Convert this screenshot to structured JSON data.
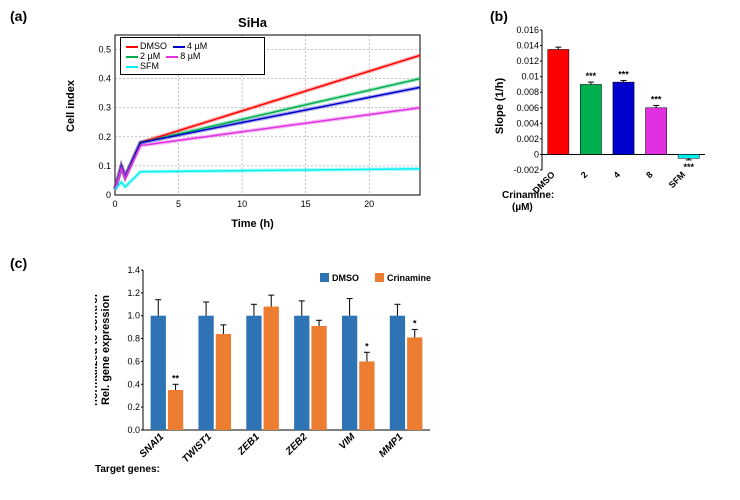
{
  "panel_a": {
    "label": "(a)",
    "title": "SiHa",
    "xlabel": "Time (h)",
    "ylabel": "Cell index",
    "xlim": [
      0,
      24
    ],
    "ylim": [
      0,
      0.55
    ],
    "xticks": [
      0,
      5,
      10,
      15,
      20
    ],
    "yticks": [
      0,
      0.1,
      0.2,
      0.3,
      0.4,
      0.5
    ],
    "legend": [
      {
        "label": "DMSO",
        "color": "#ff0000"
      },
      {
        "label": "2 µM",
        "color": "#00b050"
      },
      {
        "label": "SFM",
        "color": "#00f0f0"
      },
      {
        "label": "4 µM",
        "color": "#0000cc"
      },
      {
        "label": "8 µM",
        "color": "#e030e0"
      }
    ],
    "series": {
      "DMSO": {
        "color": "#ff0000",
        "start": 0.18,
        "end": 0.48
      },
      "2uM": {
        "color": "#00b050",
        "start": 0.18,
        "end": 0.4
      },
      "4uM": {
        "color": "#0000cc",
        "start": 0.18,
        "end": 0.37
      },
      "8uM": {
        "color": "#e030e0",
        "start": 0.17,
        "end": 0.3
      },
      "SFM": {
        "color": "#00f0f0",
        "start": 0.08,
        "end": 0.09
      }
    },
    "initial_peak_x": 0.5,
    "plateau_start_x": 2
  },
  "panel_b": {
    "label": "(b)",
    "ylabel": "Slope (1/h)",
    "xlabel_line1": "Crinamine:",
    "xlabel_line2": "(µM)",
    "ylim": [
      -0.002,
      0.016
    ],
    "yticks": [
      -0.002,
      0,
      0.002,
      0.004,
      0.006,
      0.008,
      0.01,
      0.012,
      0.014,
      0.016
    ],
    "bars": [
      {
        "label": "DMSO",
        "value": 0.0135,
        "color": "#ff0000",
        "err": 0.0003,
        "sig": ""
      },
      {
        "label": "2",
        "value": 0.009,
        "color": "#00b050",
        "err": 0.0003,
        "sig": "***"
      },
      {
        "label": "4",
        "value": 0.0093,
        "color": "#0000cc",
        "err": 0.0002,
        "sig": "***"
      },
      {
        "label": "8",
        "value": 0.006,
        "color": "#e030e0",
        "err": 0.0003,
        "sig": "***"
      },
      {
        "label": "SFM",
        "value": -0.0005,
        "color": "#00f0f0",
        "err": 0.0002,
        "sig": "***"
      }
    ]
  },
  "panel_c": {
    "label": "(c)",
    "ylabel": "Rel. gene expression\nnormalized to control",
    "xgroup_label": "Target genes:",
    "ylim": [
      0,
      1.4
    ],
    "yticks": [
      0,
      0.2,
      0.4,
      0.6,
      0.8,
      1.0,
      1.2,
      1.4
    ],
    "legend": [
      {
        "label": "DMSO",
        "color": "#2e74b5"
      },
      {
        "label": "Crinamine",
        "color": "#ed7d31"
      }
    ],
    "groups": [
      {
        "label": "SNAI1",
        "dmso": 1.0,
        "dmso_err": 0.14,
        "crin": 0.35,
        "crin_err": 0.05,
        "sig": "**"
      },
      {
        "label": "TWIST1",
        "dmso": 1.0,
        "dmso_err": 0.12,
        "crin": 0.84,
        "crin_err": 0.08,
        "sig": ""
      },
      {
        "label": "ZEB1",
        "dmso": 1.0,
        "dmso_err": 0.1,
        "crin": 1.08,
        "crin_err": 0.1,
        "sig": ""
      },
      {
        "label": "ZEB2",
        "dmso": 1.0,
        "dmso_err": 0.13,
        "crin": 0.91,
        "crin_err": 0.05,
        "sig": ""
      },
      {
        "label": "VIM",
        "dmso": 1.0,
        "dmso_err": 0.15,
        "crin": 0.6,
        "crin_err": 0.08,
        "sig": "*"
      },
      {
        "label": "MMP1",
        "dmso": 1.0,
        "dmso_err": 0.1,
        "crin": 0.81,
        "crin_err": 0.07,
        "sig": "*"
      }
    ]
  }
}
